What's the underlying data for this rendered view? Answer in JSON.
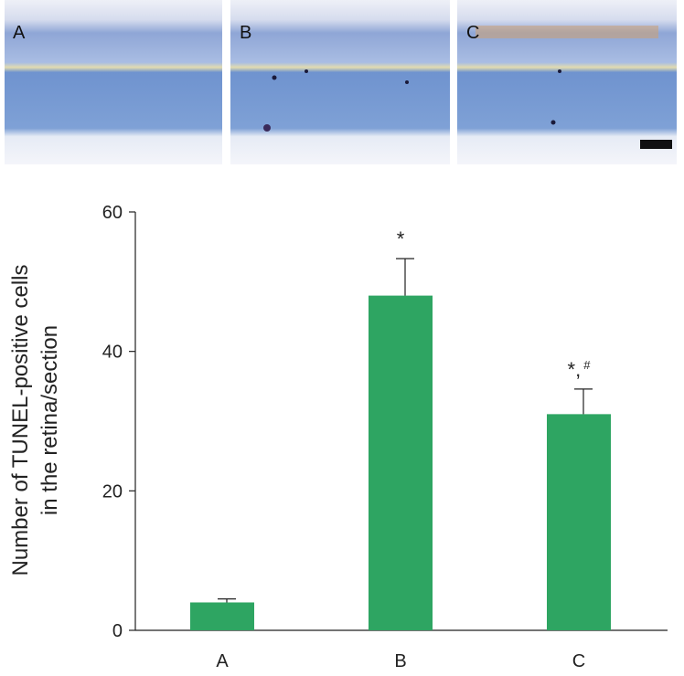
{
  "micrographs": [
    {
      "label": "A"
    },
    {
      "label": "B"
    },
    {
      "label": "C"
    }
  ],
  "chart_data": {
    "type": "bar",
    "y_label": [
      "Number of TUNEL-positive cells",
      "in the retina/section"
    ],
    "categories": [
      "A",
      "B",
      "C"
    ],
    "values": [
      4,
      48,
      31
    ],
    "errors": [
      0.5,
      5.3,
      3.6
    ],
    "color": "#2ea562",
    "annotations": [
      {
        "category": "B",
        "text": "*"
      },
      {
        "category": "C",
        "text": "*,",
        "sup": "#"
      }
    ],
    "ylim": [
      0,
      60
    ],
    "yticks": [
      0,
      20,
      40,
      60
    ]
  }
}
